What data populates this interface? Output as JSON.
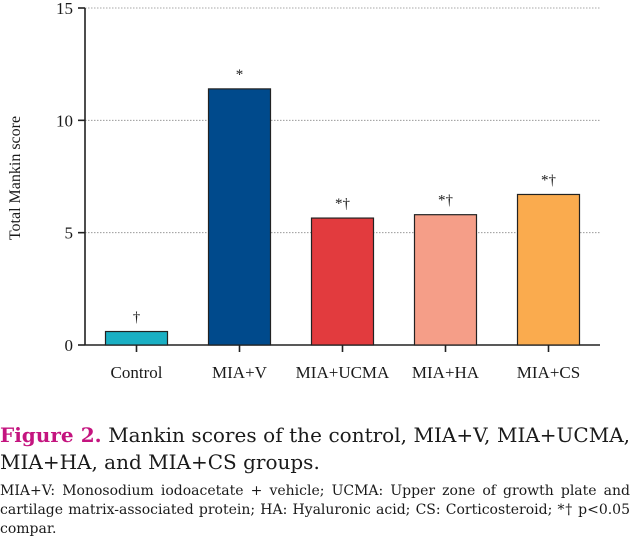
{
  "chart_data": {
    "type": "bar",
    "categories": [
      "Control",
      "MIA+V",
      "MIA+UCMA",
      "MIA+HA",
      "MIA+CS"
    ],
    "values": [
      0.6,
      11.4,
      5.65,
      5.8,
      6.7
    ],
    "annotations": [
      "†",
      "*",
      "*†",
      "*†",
      "*†"
    ],
    "colors": [
      "#1aafc3",
      "#004a8c",
      "#e23b3e",
      "#f59e88",
      "#faab4e"
    ],
    "title": "",
    "xlabel": "",
    "ylabel": "Total Mankin score",
    "ylim": [
      0,
      15
    ],
    "yticks": [
      0,
      5,
      10,
      15
    ],
    "grid": true
  },
  "caption": {
    "figure_label": "Figure 2.",
    "title": "Mankin scores of the control, MIA+V, MIA+UCMA, MIA+HA, and MIA+CS groups.",
    "note": "MIA+V: Monosodium iodoacetate + vehicle; UCMA: Upper zone of growth plate and cartilage matrix-associated protein; HA: Hyaluronic acid; CS: Corticosteroid; *† p<0.05 compar."
  }
}
